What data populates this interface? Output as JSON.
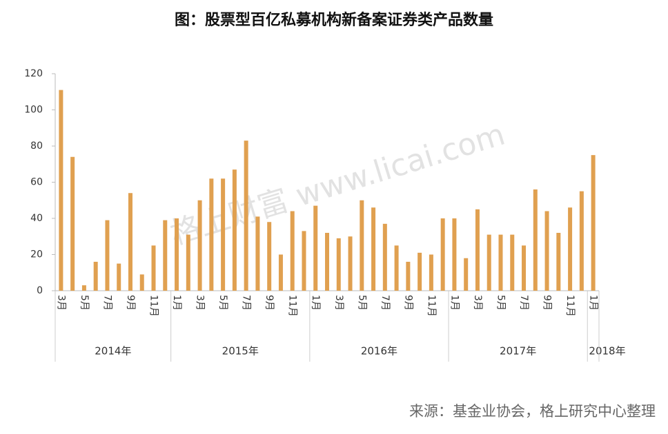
{
  "chart_data": {
    "type": "bar",
    "title": "图：股票型百亿私募机构新备案证券类产品数量",
    "categories": [
      "3月",
      null,
      "5月",
      null,
      "7月",
      null,
      "9月",
      null,
      "11月",
      null,
      "1月",
      null,
      "3月",
      null,
      "5月",
      null,
      "7月",
      null,
      "9月",
      null,
      "11月",
      null,
      "1月",
      null,
      "3月",
      null,
      "5月",
      null,
      "7月",
      null,
      "9月",
      null,
      "11月",
      null,
      "1月",
      null,
      "3月",
      null,
      "5月",
      null,
      "7月",
      null,
      "9月",
      null,
      "11月",
      null,
      "1月"
    ],
    "x_groups": [
      {
        "label": "2014年",
        "size": 10
      },
      {
        "label": "2015年",
        "size": 12
      },
      {
        "label": "2016年",
        "size": 12
      },
      {
        "label": "2017年",
        "size": 12
      },
      {
        "label": "2018年",
        "size": 1
      }
    ],
    "values": [
      111,
      74,
      3,
      16,
      39,
      15,
      54,
      9,
      25,
      39,
      40,
      31,
      50,
      62,
      62,
      67,
      83,
      41,
      38,
      20,
      44,
      33,
      47,
      32,
      29,
      30,
      50,
      46,
      37,
      25,
      16,
      21,
      20,
      40,
      40,
      18,
      45,
      31,
      31,
      31,
      25,
      56,
      44,
      32,
      46,
      55,
      75
    ],
    "color": "#e0a050",
    "ylim": [
      0,
      120
    ],
    "yticks": [
      0,
      20,
      40,
      60,
      80,
      100,
      120
    ],
    "grid": false,
    "watermark": "格上财富  www.licai.com",
    "source": "来源：基金业协会，格上研究中心整理"
  }
}
